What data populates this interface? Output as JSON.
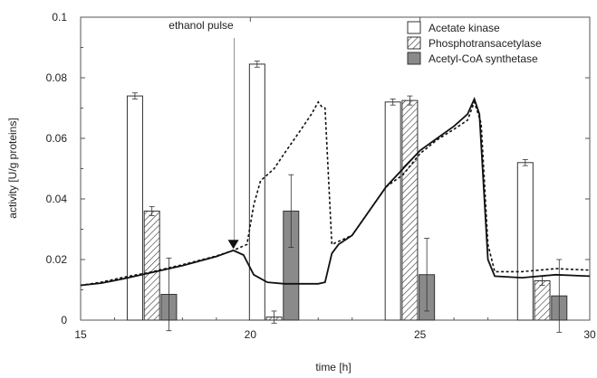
{
  "chart_data": {
    "type": "bar",
    "xlabel": "time [h]",
    "ylabel": "activity [U/g proteins]",
    "xlim": [
      15,
      30
    ],
    "ylim": [
      0,
      0.1
    ],
    "x_ticks": [
      "15",
      "20",
      "25",
      "30"
    ],
    "y_ticks": [
      "0",
      "0.02",
      "0.04",
      "0.06",
      "0.08",
      "0.1"
    ],
    "annotation": "ethanol pulse",
    "annotation_x": 19.5,
    "legend_position": "top-right",
    "bar_series": [
      {
        "name": "Acetate kinase",
        "pattern": "white",
        "points": [
          {
            "x": 16.6,
            "value": 0.074,
            "err": 0.001
          },
          {
            "x": 20.2,
            "value": 0.0845,
            "err": 0.001
          },
          {
            "x": 24.2,
            "value": 0.072,
            "err": 0.001
          },
          {
            "x": 28.1,
            "value": 0.052,
            "err": 0.001
          }
        ]
      },
      {
        "name": "Phosphotransacetylase",
        "pattern": "hatched",
        "points": [
          {
            "x": 17.1,
            "value": 0.036,
            "err": 0.0015
          },
          {
            "x": 20.7,
            "value": 0.001,
            "err": 0.002
          },
          {
            "x": 24.7,
            "value": 0.0725,
            "err": 0.0015
          },
          {
            "x": 28.6,
            "value": 0.013,
            "err": 0.0015
          }
        ]
      },
      {
        "name": "Acetyl-CoA synthetase",
        "pattern": "gray",
        "points": [
          {
            "x": 17.6,
            "value": 0.0085,
            "err": 0.012
          },
          {
            "x": 21.2,
            "value": 0.036,
            "err": 0.012
          },
          {
            "x": 25.2,
            "value": 0.015,
            "err": 0.012
          },
          {
            "x": 29.1,
            "value": 0.008,
            "err": 0.012
          }
        ]
      }
    ],
    "line_series": [
      {
        "style": "solid",
        "points": [
          [
            15,
            0.0115
          ],
          [
            15.6,
            0.0122
          ],
          [
            16.2,
            0.0135
          ],
          [
            17,
            0.0155
          ],
          [
            18,
            0.018
          ],
          [
            19,
            0.021
          ],
          [
            19.5,
            0.023
          ],
          [
            19.8,
            0.0215
          ],
          [
            20.1,
            0.015
          ],
          [
            20.5,
            0.0125
          ],
          [
            21,
            0.012
          ],
          [
            22,
            0.012
          ],
          [
            22.2,
            0.0125
          ],
          [
            22.4,
            0.022
          ],
          [
            22.6,
            0.025
          ],
          [
            23,
            0.028
          ],
          [
            24,
            0.044
          ],
          [
            24.5,
            0.05
          ],
          [
            25,
            0.056
          ],
          [
            25.5,
            0.06
          ],
          [
            26,
            0.064
          ],
          [
            26.4,
            0.068
          ],
          [
            26.6,
            0.073
          ],
          [
            26.75,
            0.068
          ],
          [
            27,
            0.02
          ],
          [
            27.2,
            0.0145
          ],
          [
            28,
            0.014
          ],
          [
            29,
            0.015
          ],
          [
            30,
            0.0145
          ]
        ]
      },
      {
        "style": "dashed",
        "points": [
          [
            15,
            0.0115
          ],
          [
            15.6,
            0.0125
          ],
          [
            16.2,
            0.014
          ],
          [
            17,
            0.0157
          ],
          [
            18,
            0.0183
          ],
          [
            19,
            0.0212
          ],
          [
            19.5,
            0.023
          ],
          [
            19.9,
            0.025
          ],
          [
            20.1,
            0.038
          ],
          [
            20.3,
            0.046
          ],
          [
            20.7,
            0.05
          ],
          [
            21,
            0.055
          ],
          [
            21.5,
            0.063
          ],
          [
            21.8,
            0.068
          ],
          [
            22,
            0.072
          ],
          [
            22.1,
            0.0705
          ],
          [
            22.2,
            0.07
          ],
          [
            22.4,
            0.025
          ],
          [
            23,
            0.028
          ],
          [
            24,
            0.044
          ],
          [
            24.5,
            0.048
          ],
          [
            25,
            0.055
          ],
          [
            25.5,
            0.0595
          ],
          [
            26,
            0.063
          ],
          [
            26.4,
            0.066
          ],
          [
            26.6,
            0.072
          ],
          [
            26.8,
            0.065
          ],
          [
            27,
            0.025
          ],
          [
            27.2,
            0.016
          ],
          [
            28,
            0.016
          ],
          [
            29,
            0.017
          ],
          [
            30,
            0.0165
          ]
        ]
      }
    ]
  }
}
